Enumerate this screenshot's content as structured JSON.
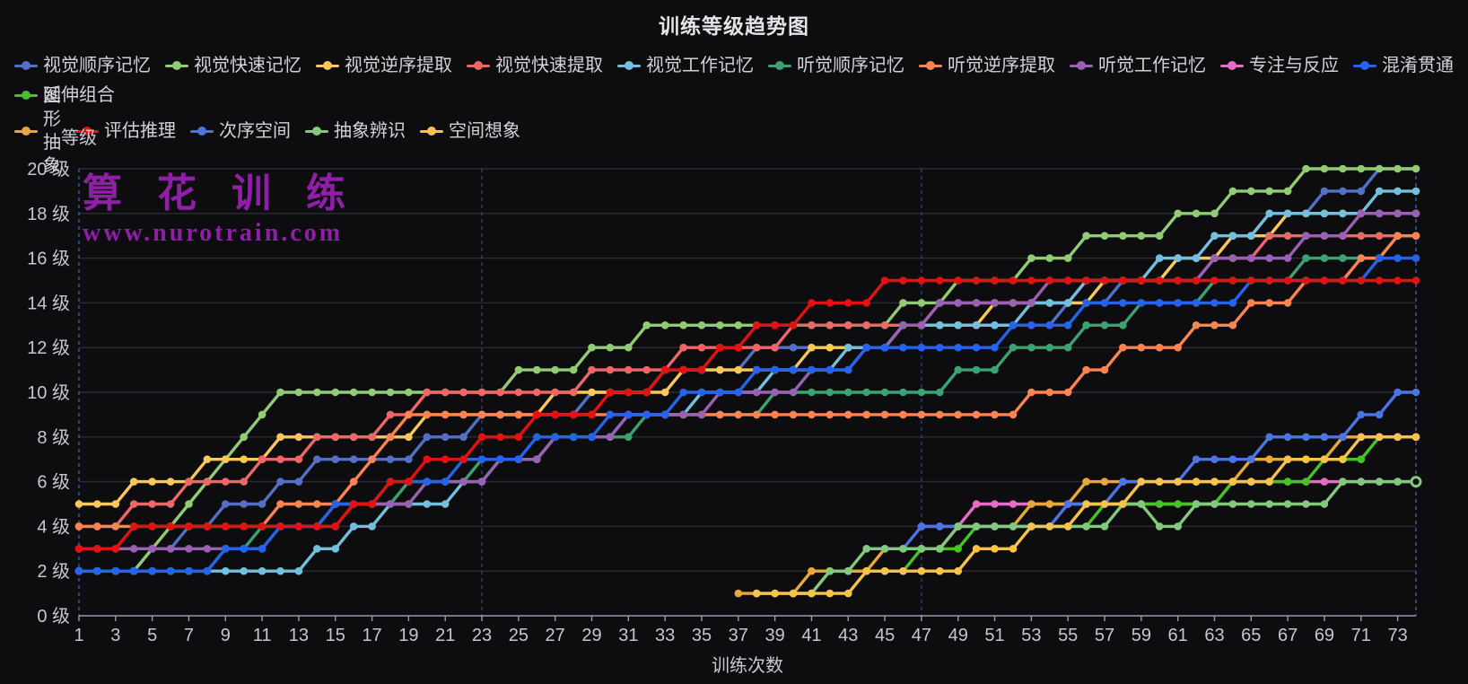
{
  "title": "训练等级趋势图",
  "watermark": {
    "line1": "算 花 训 练",
    "line2": "www.nurotrain.com",
    "color": "#8e1fa6"
  },
  "axes": {
    "y_name": "等级",
    "x_name": "训练次数",
    "y_tick_suffix": " 级",
    "background": "#0d0d0f",
    "grid_color": "#2b2b32",
    "axis_line_color": "#9a9aae",
    "dashed_line_color": "#4a5fd0",
    "tick_text_color": "#c6c6d2"
  },
  "chart_data": {
    "type": "line",
    "title": "训练等级趋势图",
    "xlabel": "训练次数",
    "ylabel": "等级",
    "x_range": [
      1,
      74
    ],
    "x_tick_labels": [
      1,
      3,
      5,
      7,
      9,
      11,
      13,
      15,
      17,
      19,
      21,
      23,
      25,
      27,
      29,
      31,
      33,
      35,
      37,
      39,
      41,
      43,
      45,
      47,
      49,
      51,
      53,
      55,
      57,
      59,
      61,
      63,
      65,
      67,
      69,
      71,
      73
    ],
    "ylim": [
      0,
      20
    ],
    "y_ticks": [
      0,
      2,
      4,
      6,
      8,
      10,
      12,
      14,
      16,
      18,
      20
    ],
    "grid": "horizontal solid every 2 levels; dashed vertical split lines",
    "x_splitlines": [
      23,
      47
    ],
    "legend_position": "top-left, two rows",
    "value_encoding": "level_changes = [x, new_level]; level holds until next change (staircase line, one-unit diagonals)",
    "series": [
      {
        "name": "视觉顺序记忆",
        "color": "#5470c6",
        "level_changes": [
          [
            1,
            2
          ],
          [
            5,
            3
          ],
          [
            7,
            4
          ],
          [
            9,
            5
          ],
          [
            12,
            6
          ],
          [
            14,
            7
          ],
          [
            20,
            8
          ],
          [
            23,
            9
          ],
          [
            29,
            10
          ],
          [
            33,
            11
          ],
          [
            38,
            12
          ],
          [
            46,
            13
          ],
          [
            55,
            14
          ],
          [
            58,
            15
          ],
          [
            61,
            16
          ],
          [
            64,
            17
          ],
          [
            66,
            18
          ],
          [
            69,
            19
          ],
          [
            72,
            20
          ],
          [
            74,
            20
          ]
        ]
      },
      {
        "name": "视觉快速记忆",
        "color": "#91cc75",
        "level_changes": [
          [
            1,
            2
          ],
          [
            5,
            3
          ],
          [
            6,
            4
          ],
          [
            7,
            5
          ],
          [
            8,
            6
          ],
          [
            9,
            7
          ],
          [
            10,
            8
          ],
          [
            11,
            9
          ],
          [
            12,
            10
          ],
          [
            25,
            11
          ],
          [
            29,
            12
          ],
          [
            32,
            13
          ],
          [
            46,
            14
          ],
          [
            49,
            15
          ],
          [
            53,
            16
          ],
          [
            56,
            17
          ],
          [
            61,
            18
          ],
          [
            64,
            19
          ],
          [
            68,
            20
          ],
          [
            74,
            20
          ]
        ]
      },
      {
        "name": "视觉逆序提取",
        "color": "#fac858",
        "level_changes": [
          [
            1,
            5
          ],
          [
            4,
            6
          ],
          [
            8,
            7
          ],
          [
            12,
            8
          ],
          [
            20,
            9
          ],
          [
            27,
            10
          ],
          [
            34,
            11
          ],
          [
            41,
            12
          ],
          [
            46,
            13
          ],
          [
            51,
            14
          ],
          [
            57,
            15
          ],
          [
            61,
            16
          ],
          [
            64,
            17
          ],
          [
            67,
            18
          ],
          [
            74,
            18
          ]
        ]
      },
      {
        "name": "视觉快速提取",
        "color": "#ee6666",
        "level_changes": [
          [
            1,
            4
          ],
          [
            4,
            5
          ],
          [
            7,
            6
          ],
          [
            11,
            7
          ],
          [
            14,
            8
          ],
          [
            18,
            9
          ],
          [
            20,
            10
          ],
          [
            29,
            11
          ],
          [
            34,
            12
          ],
          [
            40,
            13
          ],
          [
            48,
            14
          ],
          [
            56,
            15
          ],
          [
            63,
            16
          ],
          [
            66,
            17
          ],
          [
            74,
            17
          ]
        ]
      },
      {
        "name": "视觉工作记忆",
        "color": "#73c0de",
        "level_changes": [
          [
            1,
            2
          ],
          [
            14,
            3
          ],
          [
            16,
            4
          ],
          [
            18,
            5
          ],
          [
            22,
            6
          ],
          [
            24,
            7
          ],
          [
            27,
            8
          ],
          [
            31,
            9
          ],
          [
            35,
            10
          ],
          [
            39,
            11
          ],
          [
            43,
            12
          ],
          [
            46,
            13
          ],
          [
            53,
            14
          ],
          [
            56,
            15
          ],
          [
            60,
            16
          ],
          [
            63,
            17
          ],
          [
            66,
            18
          ],
          [
            72,
            19
          ],
          [
            74,
            19
          ]
        ]
      },
      {
        "name": "听觉顺序记忆",
        "color": "#3ba272",
        "level_changes": [
          [
            1,
            2
          ],
          [
            9,
            3
          ],
          [
            11,
            4
          ],
          [
            15,
            5
          ],
          [
            19,
            6
          ],
          [
            23,
            7
          ],
          [
            27,
            8
          ],
          [
            32,
            9
          ],
          [
            39,
            10
          ],
          [
            49,
            11
          ],
          [
            52,
            12
          ],
          [
            56,
            13
          ],
          [
            59,
            14
          ],
          [
            63,
            15
          ],
          [
            68,
            16
          ],
          [
            73,
            17
          ],
          [
            74,
            17
          ]
        ]
      },
      {
        "name": "听觉逆序提取",
        "color": "#fc8452",
        "level_changes": [
          [
            1,
            4
          ],
          [
            12,
            5
          ],
          [
            16,
            6
          ],
          [
            17,
            7
          ],
          [
            18,
            8
          ],
          [
            19,
            9
          ],
          [
            53,
            10
          ],
          [
            56,
            11
          ],
          [
            58,
            12
          ],
          [
            62,
            13
          ],
          [
            65,
            14
          ],
          [
            68,
            15
          ],
          [
            71,
            16
          ],
          [
            73,
            17
          ],
          [
            74,
            17
          ]
        ]
      },
      {
        "name": "听觉工作记忆",
        "color": "#9a60b4",
        "level_changes": [
          [
            1,
            3
          ],
          [
            12,
            4
          ],
          [
            16,
            5
          ],
          [
            20,
            6
          ],
          [
            24,
            7
          ],
          [
            27,
            8
          ],
          [
            31,
            9
          ],
          [
            36,
            10
          ],
          [
            41,
            11
          ],
          [
            44,
            12
          ],
          [
            46,
            13
          ],
          [
            48,
            14
          ],
          [
            54,
            15
          ],
          [
            63,
            16
          ],
          [
            68,
            17
          ],
          [
            71,
            18
          ],
          [
            74,
            18
          ]
        ]
      },
      {
        "name": "专注与反应",
        "color": "#e96bc8",
        "level_changes": [
          [
            47,
            4
          ],
          [
            50,
            5
          ],
          [
            64,
            6
          ],
          [
            74,
            6
          ]
        ]
      },
      {
        "name": "混淆贯通",
        "color": "#2563eb",
        "level_changes": [
          [
            1,
            2
          ],
          [
            9,
            3
          ],
          [
            12,
            4
          ],
          [
            15,
            5
          ],
          [
            18,
            6
          ],
          [
            22,
            7
          ],
          [
            26,
            8
          ],
          [
            30,
            9
          ],
          [
            34,
            10
          ],
          [
            38,
            11
          ],
          [
            44,
            12
          ],
          [
            52,
            13
          ],
          [
            56,
            14
          ],
          [
            65,
            15
          ],
          [
            72,
            16
          ],
          [
            74,
            16
          ]
        ]
      },
      {
        "name": "延伸组合",
        "color": "#45c426",
        "level_changes": [
          [
            40,
            1
          ],
          [
            42,
            2
          ],
          [
            47,
            3
          ],
          [
            50,
            4
          ],
          [
            57,
            5
          ],
          [
            64,
            6
          ],
          [
            69,
            7
          ],
          [
            72,
            8
          ],
          [
            74,
            8
          ]
        ]
      },
      {
        "name": "图形抽象",
        "color": "#e8a838",
        "level_changes": [
          [
            37,
            1
          ],
          [
            41,
            2
          ],
          [
            45,
            3
          ],
          [
            49,
            4
          ],
          [
            53,
            5
          ],
          [
            56,
            6
          ],
          [
            65,
            7
          ],
          [
            70,
            8
          ],
          [
            74,
            8
          ]
        ]
      },
      {
        "name": "评估推理",
        "color": "#e31212",
        "level_changes": [
          [
            1,
            3
          ],
          [
            4,
            4
          ],
          [
            16,
            5
          ],
          [
            18,
            6
          ],
          [
            20,
            7
          ],
          [
            23,
            8
          ],
          [
            26,
            9
          ],
          [
            30,
            10
          ],
          [
            33,
            11
          ],
          [
            36,
            12
          ],
          [
            38,
            13
          ],
          [
            41,
            14
          ],
          [
            45,
            15
          ],
          [
            74,
            15
          ]
        ]
      },
      {
        "name": "次序空间",
        "color": "#4b74e6",
        "level_changes": [
          [
            44,
            3
          ],
          [
            47,
            4
          ],
          [
            55,
            5
          ],
          [
            58,
            6
          ],
          [
            62,
            7
          ],
          [
            66,
            8
          ],
          [
            71,
            9
          ],
          [
            73,
            10
          ],
          [
            74,
            10
          ]
        ]
      },
      {
        "name": "抽象辨识",
        "color": "#83c97d",
        "last_open": true,
        "level_changes": [
          [
            40,
            1
          ],
          [
            42,
            2
          ],
          [
            44,
            3
          ],
          [
            49,
            4
          ],
          [
            58,
            5
          ],
          [
            60,
            4
          ],
          [
            62,
            5
          ],
          [
            70,
            6
          ],
          [
            74,
            6
          ]
        ]
      },
      {
        "name": "空间想象",
        "color": "#f7c34c",
        "level_changes": [
          [
            38,
            1
          ],
          [
            44,
            2
          ],
          [
            50,
            3
          ],
          [
            53,
            4
          ],
          [
            56,
            5
          ],
          [
            59,
            6
          ],
          [
            67,
            7
          ],
          [
            71,
            8
          ],
          [
            74,
            8
          ]
        ]
      }
    ]
  },
  "legend_row_break": 11
}
